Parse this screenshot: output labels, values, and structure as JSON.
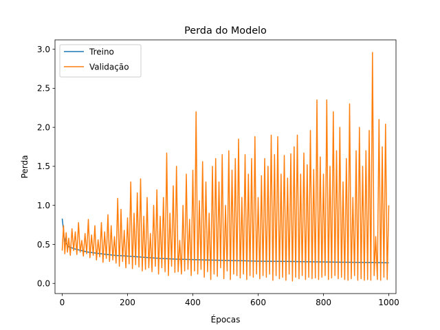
{
  "chart_data": {
    "type": "line",
    "title": "Perda do Modelo",
    "xlabel": "Épocas",
    "ylabel": "Perda",
    "xlim": [
      -22,
      1022
    ],
    "ylim": [
      -0.13,
      3.12
    ],
    "xticks": [
      0,
      200,
      400,
      600,
      800,
      1000
    ],
    "yticks": [
      0.0,
      0.5,
      1.0,
      1.5,
      2.0,
      2.5,
      3.0
    ],
    "xtick_labels": [
      "0",
      "200",
      "400",
      "600",
      "800",
      "1000"
    ],
    "ytick_labels": [
      "0.0",
      "0.5",
      "1.0",
      "1.5",
      "2.0",
      "2.5",
      "3.0"
    ],
    "grid": false,
    "legend": "top-left",
    "series": [
      {
        "name": "Treino",
        "color": "#1f77b4",
        "x": [
          0,
          3,
          6,
          10,
          20,
          40,
          60,
          80,
          100,
          130,
          160,
          200,
          250,
          300,
          350,
          400,
          450,
          500,
          550,
          600,
          650,
          700,
          750,
          800,
          850,
          900,
          950,
          1000
        ],
        "y": [
          0.83,
          0.72,
          0.6,
          0.52,
          0.47,
          0.44,
          0.42,
          0.4,
          0.39,
          0.375,
          0.36,
          0.35,
          0.335,
          0.32,
          0.31,
          0.305,
          0.3,
          0.295,
          0.29,
          0.285,
          0.283,
          0.28,
          0.277,
          0.275,
          0.272,
          0.27,
          0.268,
          0.265
        ]
      },
      {
        "name": "Validação",
        "color": "#ff7f0e",
        "x": [
          0,
          4,
          8,
          12,
          16,
          20,
          25,
          30,
          35,
          40,
          45,
          50,
          55,
          60,
          65,
          70,
          75,
          80,
          85,
          90,
          95,
          100,
          105,
          110,
          115,
          120,
          125,
          130,
          135,
          140,
          145,
          150,
          155,
          160,
          165,
          170,
          175,
          180,
          185,
          190,
          195,
          200,
          205,
          210,
          215,
          220,
          225,
          230,
          235,
          240,
          245,
          250,
          255,
          260,
          265,
          270,
          275,
          280,
          285,
          290,
          295,
          300,
          305,
          310,
          315,
          320,
          325,
          330,
          335,
          340,
          345,
          350,
          355,
          360,
          365,
          370,
          375,
          380,
          385,
          390,
          395,
          400,
          405,
          410,
          415,
          420,
          425,
          430,
          435,
          440,
          445,
          450,
          455,
          460,
          465,
          470,
          475,
          480,
          485,
          490,
          495,
          500,
          505,
          510,
          515,
          520,
          525,
          530,
          535,
          540,
          545,
          550,
          555,
          560,
          565,
          570,
          575,
          580,
          585,
          590,
          595,
          600,
          605,
          610,
          615,
          620,
          625,
          630,
          635,
          640,
          645,
          650,
          655,
          660,
          665,
          670,
          675,
          680,
          685,
          690,
          695,
          700,
          705,
          710,
          715,
          720,
          725,
          730,
          735,
          740,
          745,
          750,
          755,
          760,
          765,
          770,
          775,
          780,
          785,
          790,
          795,
          800,
          805,
          810,
          815,
          820,
          825,
          830,
          835,
          840,
          845,
          850,
          855,
          860,
          865,
          870,
          875,
          880,
          885,
          890,
          895,
          900,
          905,
          910,
          915,
          920,
          925,
          930,
          935,
          940,
          945,
          950,
          955,
          960,
          965,
          970,
          975,
          980,
          985,
          990,
          995,
          1000
        ],
        "y": [
          0.42,
          0.74,
          0.38,
          0.65,
          0.4,
          0.58,
          0.36,
          0.7,
          0.42,
          0.66,
          0.37,
          0.78,
          0.4,
          0.55,
          0.35,
          0.64,
          0.38,
          0.82,
          0.33,
          0.62,
          0.36,
          0.74,
          0.3,
          0.56,
          0.34,
          0.78,
          0.27,
          0.66,
          0.32,
          0.88,
          0.28,
          0.74,
          0.3,
          0.6,
          0.26,
          1.09,
          0.22,
          0.95,
          0.28,
          0.68,
          0.2,
          0.84,
          0.25,
          1.3,
          0.19,
          0.9,
          0.24,
          1.16,
          0.21,
          1.34,
          0.16,
          0.86,
          0.18,
          1.1,
          0.2,
          0.64,
          0.15,
          1.0,
          0.22,
          1.2,
          0.12,
          0.86,
          0.2,
          1.1,
          0.15,
          1.67,
          0.1,
          0.9,
          0.22,
          1.25,
          0.14,
          1.5,
          0.15,
          0.55,
          0.12,
          1.0,
          0.16,
          1.4,
          0.18,
          0.82,
          0.1,
          1.45,
          0.16,
          2.2,
          0.12,
          1.06,
          0.18,
          1.56,
          0.08,
          1.3,
          0.15,
          0.9,
          0.05,
          1.5,
          0.12,
          1.6,
          0.09,
          1.3,
          0.2,
          1.65,
          0.06,
          1.0,
          0.16,
          1.7,
          0.05,
          1.45,
          0.12,
          1.6,
          0.1,
          1.85,
          0.07,
          1.1,
          0.12,
          1.65,
          0.05,
          1.4,
          0.1,
          1.6,
          0.08,
          1.88,
          0.12,
          1.1,
          0.06,
          1.38,
          0.1,
          1.6,
          0.08,
          1.5,
          0.12,
          1.9,
          0.04,
          1.65,
          0.1,
          1.88,
          0.06,
          1.4,
          0.08,
          1.64,
          0.04,
          1.35,
          0.12,
          1.66,
          0.03,
          1.75,
          0.08,
          1.9,
          0.06,
          1.4,
          0.1,
          1.67,
          0.05,
          1.52,
          0.08,
          1.96,
          0.06,
          1.46,
          0.07,
          2.35,
          0.05,
          1.62,
          0.08,
          1.4,
          0.1,
          2.35,
          0.05,
          1.5,
          0.07,
          2.2,
          0.1,
          1.7,
          0.06,
          2.0,
          0.08,
          1.3,
          0.05,
          1.6,
          0.04,
          2.3,
          0.06,
          1.1,
          0.1,
          1.7,
          0.04,
          2.0,
          0.06,
          1.5,
          0.04,
          1.7,
          0.05,
          1.96,
          0.04,
          2.96,
          0.1,
          0.6,
          0.05,
          2.1,
          0.04,
          1.75,
          0.08,
          2.04,
          0.05,
          1.0
        ]
      }
    ]
  }
}
